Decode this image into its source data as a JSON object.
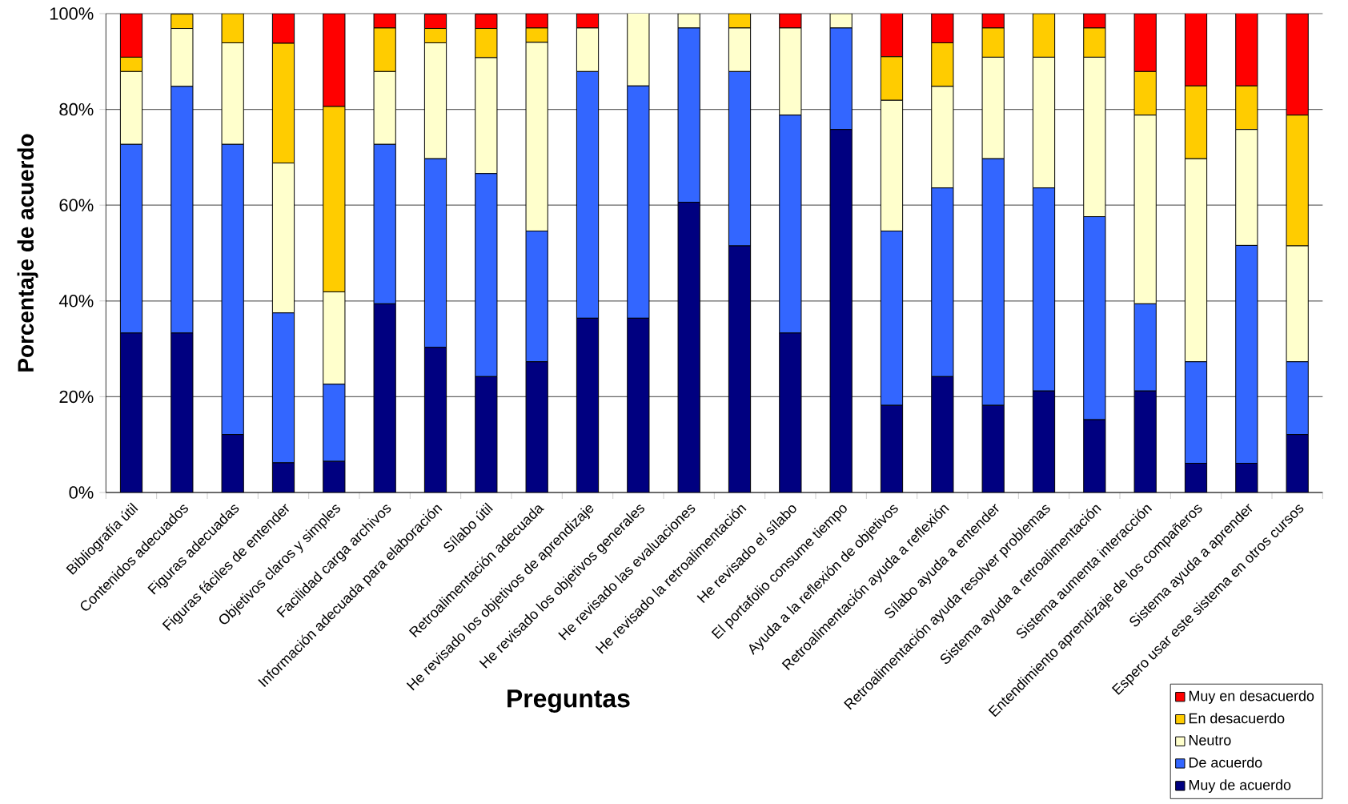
{
  "chart_data": {
    "type": "bar",
    "stacked": true,
    "xlabel": "Preguntas",
    "ylabel": "Porcentaje de acuerdo",
    "categories": [
      "Bibliografía útil",
      "Contenidos adecuados",
      "Figuras adecuadas",
      "Figuras fáciles de entender",
      "Objetivos claros y simples",
      "Facilidad carga archivos",
      "Información adecuada para elaboración",
      "Sílabo útil",
      "Retroalimentación adecuada",
      "He revisado los objetivos de aprendizaje",
      "He revisado los objetivos generales",
      "He revisado las evaluaciones",
      "He revisado la retroalimentación",
      "He revisado el sílabo",
      "El portafolio consume tiempo",
      "Ayuda a la reflexión de objetivos",
      "Retroalimentación ayuda a reflexión",
      "Sílabo ayuda a entender",
      "Retroalimentación ayuda resolver problemas",
      "Sistema ayuda a retroalimentación",
      "Sistema aumenta interacción",
      "Entendimiento aprendizaje de los compañeros",
      "Sistema ayuda a aprender",
      "Espero usar este sistema en otros cursos"
    ],
    "series": [
      {
        "name": "Muy de acuerdo",
        "color": "#000080",
        "values": [
          33.3,
          33.3,
          12.1,
          6.2,
          6.5,
          39.4,
          30.3,
          24.2,
          27.3,
          36.4,
          36.4,
          60.6,
          51.5,
          33.3,
          75.8,
          18.2,
          24.2,
          18.2,
          21.2,
          15.2,
          21.2,
          6.1,
          6.1,
          12.1
        ]
      },
      {
        "name": "De acuerdo",
        "color": "#3366ff",
        "values": [
          39.4,
          51.5,
          60.6,
          31.3,
          16.1,
          33.3,
          39.4,
          42.4,
          27.3,
          51.5,
          48.5,
          36.4,
          36.4,
          45.5,
          21.2,
          36.4,
          39.4,
          51.5,
          42.4,
          42.4,
          18.2,
          21.2,
          45.5,
          15.2
        ]
      },
      {
        "name": "Neutro",
        "color": "#ffffcc",
        "values": [
          15.2,
          12.1,
          21.2,
          31.3,
          19.3,
          15.2,
          24.2,
          24.2,
          39.4,
          9.1,
          15.2,
          3.0,
          9.1,
          18.2,
          3.0,
          27.3,
          21.2,
          21.2,
          27.3,
          33.3,
          39.4,
          42.4,
          24.2,
          24.2
        ]
      },
      {
        "name": "En desacuerdo",
        "color": "#ffcc00",
        "values": [
          3.0,
          3.0,
          6.1,
          25.0,
          38.7,
          9.1,
          3.0,
          6.1,
          3.0,
          0,
          0,
          0,
          3.0,
          0,
          0,
          9.1,
          9.1,
          6.1,
          9.1,
          6.1,
          9.1,
          15.2,
          9.1,
          27.3
        ]
      },
      {
        "name": "Muy en desacuerdo",
        "color": "#ff0000",
        "values": [
          9.1,
          0,
          0,
          6.2,
          19.4,
          3.0,
          3.0,
          3.0,
          3.0,
          3.0,
          0,
          0,
          0,
          3.0,
          0,
          9.1,
          6.1,
          3.0,
          0,
          3.0,
          12.1,
          15.2,
          15.2,
          21.2
        ]
      }
    ],
    "ylim": [
      0,
      100
    ],
    "yticks": [
      {
        "value": 0,
        "label": "0%"
      },
      {
        "value": 20,
        "label": "20%"
      },
      {
        "value": 40,
        "label": "40%"
      },
      {
        "value": 60,
        "label": "60%"
      },
      {
        "value": 80,
        "label": "80%"
      },
      {
        "value": 100,
        "label": "100%"
      }
    ],
    "grid": "y",
    "legend": "bottom right"
  }
}
